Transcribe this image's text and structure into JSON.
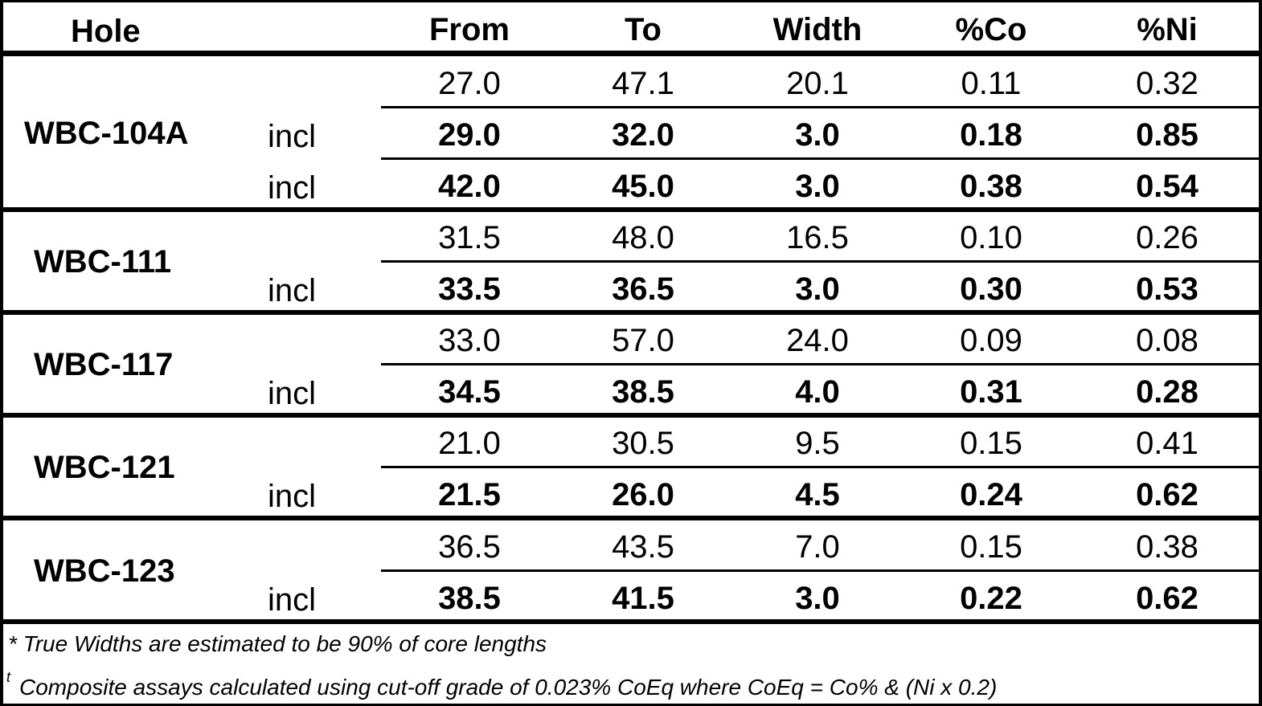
{
  "header": {
    "hole": "Hole",
    "from": "From",
    "to": "To",
    "width": "Width",
    "co": "%Co",
    "ni": "%Ni"
  },
  "groups": [
    {
      "hole": "WBC-104A",
      "rows": [
        {
          "incl": "",
          "from": "27.0",
          "to": "47.1",
          "width": "20.1",
          "co": "0.11",
          "ni": "0.32",
          "bold": false
        },
        {
          "incl": "incl",
          "from": "29.0",
          "to": "32.0",
          "width": "3.0",
          "co": "0.18",
          "ni": "0.85",
          "bold": true
        },
        {
          "incl": "incl",
          "from": "42.0",
          "to": "45.0",
          "width": "3.0",
          "co": "0.38",
          "ni": "0.54",
          "bold": true
        }
      ]
    },
    {
      "hole": "WBC-111",
      "rows": [
        {
          "incl": "",
          "from": "31.5",
          "to": "48.0",
          "width": "16.5",
          "co": "0.10",
          "ni": "0.26",
          "bold": false
        },
        {
          "incl": "incl",
          "from": "33.5",
          "to": "36.5",
          "width": "3.0",
          "co": "0.30",
          "ni": "0.53",
          "bold": true
        }
      ]
    },
    {
      "hole": "WBC-117",
      "rows": [
        {
          "incl": "",
          "from": "33.0",
          "to": "57.0",
          "width": "24.0",
          "co": "0.09",
          "ni": "0.08",
          "bold": false
        },
        {
          "incl": "incl",
          "from": "34.5",
          "to": "38.5",
          "width": "4.0",
          "co": "0.31",
          "ni": "0.28",
          "bold": true
        }
      ]
    },
    {
      "hole": "WBC-121",
      "rows": [
        {
          "incl": "",
          "from": "21.0",
          "to": "30.5",
          "width": "9.5",
          "co": "0.15",
          "ni": "0.41",
          "bold": false
        },
        {
          "incl": "incl",
          "from": "21.5",
          "to": "26.0",
          "width": "4.5",
          "co": "0.24",
          "ni": "0.62",
          "bold": true
        }
      ]
    },
    {
      "hole": "WBC-123",
      "rows": [
        {
          "incl": "",
          "from": "36.5",
          "to": "43.5",
          "width": "7.0",
          "co": "0.15",
          "ni": "0.38",
          "bold": false
        },
        {
          "incl": "incl",
          "from": "38.5",
          "to": "41.5",
          "width": "3.0",
          "co": "0.22",
          "ni": "0.62",
          "bold": true
        }
      ]
    }
  ],
  "notes": {
    "note1": "* True Widths are estimated to be 90% of core lengths",
    "note2_marker": "t",
    "note2": "Composite assays calculated using cut-off grade of 0.023% CoEq where CoEq = Co% & (Ni x 0.2)"
  }
}
